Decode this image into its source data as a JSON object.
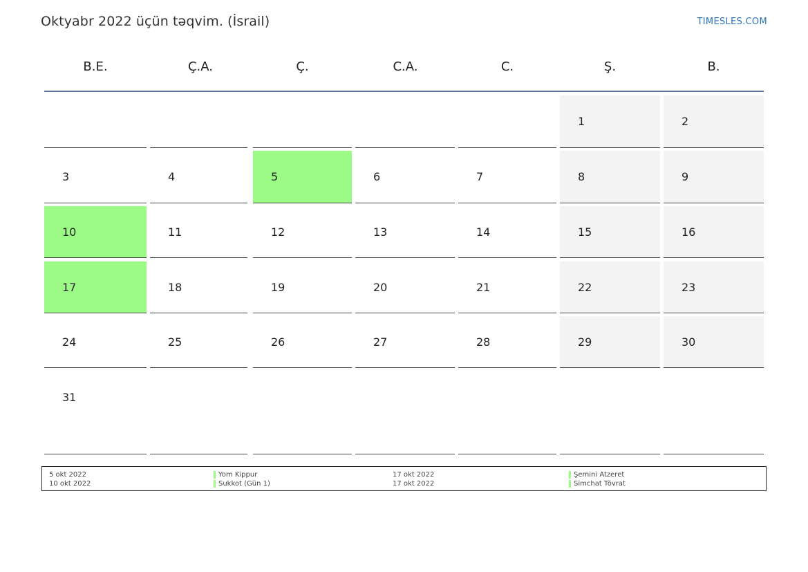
{
  "header": {
    "title": "Oktyabr 2022 üçün təqvim. (İsrail)",
    "site": "TIMESLES.COM"
  },
  "colors": {
    "holiday": "#9cfb87",
    "weekend": "#f3f3f3",
    "header_line": "#5a7593",
    "link": "#2b73b6"
  },
  "weekdays": [
    "B.E.",
    "Ç.A.",
    "Ç.",
    "C.A.",
    "C.",
    "Ş.",
    "B."
  ],
  "weeks": [
    [
      "",
      "",
      "",
      "",
      "",
      "1",
      "2"
    ],
    [
      "3",
      "4",
      "5",
      "6",
      "7",
      "8",
      "9"
    ],
    [
      "10",
      "11",
      "12",
      "13",
      "14",
      "15",
      "16"
    ],
    [
      "17",
      "18",
      "19",
      "20",
      "21",
      "22",
      "23"
    ],
    [
      "24",
      "25",
      "26",
      "27",
      "28",
      "29",
      "30"
    ],
    [
      "31",
      "",
      "",
      "",
      "",
      "",
      ""
    ]
  ],
  "holiday_days": [
    "5",
    "10",
    "17"
  ],
  "weekend_columns": [
    "Ş.",
    "B."
  ],
  "legend": {
    "col1_dates": [
      "5 okt 2022",
      "10 okt 2022"
    ],
    "col1_names": [
      "Yom Kippur",
      "Sukkot (Gün 1)"
    ],
    "col2_dates": [
      "17 okt 2022",
      "17 okt 2022"
    ],
    "col2_names": [
      "Şemini Atzeret",
      "Simchat Tövrat"
    ]
  }
}
